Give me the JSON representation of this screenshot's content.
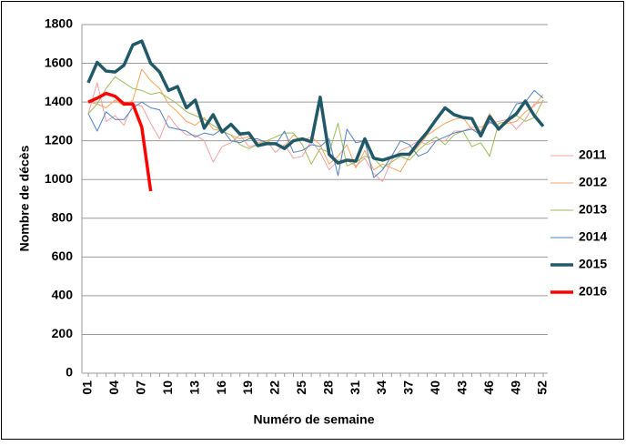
{
  "chart_data": {
    "type": "line",
    "y_label": "Nombre de décès",
    "x_label": "Numéro de semaine",
    "categories": [
      "01",
      null,
      null,
      "04",
      null,
      null,
      "07",
      null,
      null,
      "10",
      null,
      null,
      "13",
      null,
      null,
      "16",
      null,
      null,
      "19",
      null,
      null,
      "22",
      null,
      null,
      "25",
      null,
      null,
      "28",
      null,
      null,
      "31",
      null,
      null,
      "34",
      null,
      null,
      "37",
      null,
      null,
      "40",
      null,
      null,
      "43",
      null,
      null,
      "46",
      null,
      null,
      "49",
      null,
      null,
      "52"
    ],
    "series": [
      {
        "name": "2011",
        "color": "#f4a0a0",
        "line_width": 1,
        "values": [
          1340,
          1500,
          1300,
          1330,
          1280,
          1390,
          1380,
          1290,
          1210,
          1330,
          1270,
          1230,
          1230,
          1200,
          1090,
          1170,
          1190,
          1230,
          1170,
          1180,
          1200,
          1140,
          1180,
          1110,
          1120,
          1200,
          1140,
          1050,
          1100,
          1100,
          1070,
          1110,
          1030,
          990,
          1100,
          1150,
          1170,
          1200,
          1180,
          1200,
          1200,
          1250,
          1250,
          1270,
          1270,
          1290,
          1300,
          1310,
          1260,
          1310,
          1390,
          1400
        ]
      },
      {
        "name": "2012",
        "color": "#f7a35c",
        "line_width": 1,
        "values": [
          1400,
          1390,
          1370,
          1410,
          1380,
          1410,
          1570,
          1510,
          1470,
          1390,
          1350,
          1300,
          1280,
          1320,
          1260,
          1250,
          1230,
          1210,
          1220,
          1190,
          1200,
          1180,
          1170,
          1230,
          1200,
          1220,
          1180,
          1080,
          1120,
          1180,
          1060,
          1150,
          1050,
          1080,
          1060,
          1040,
          1120,
          1170,
          1230,
          1260,
          1290,
          1310,
          1320,
          1260,
          1250,
          1340,
          1270,
          1290,
          1300,
          1350,
          1380,
          1440
        ]
      },
      {
        "name": "2013",
        "color": "#9bbb59",
        "line_width": 1,
        "values": [
          1340,
          1390,
          1470,
          1530,
          1500,
          1470,
          1460,
          1440,
          1450,
          1420,
          1390,
          1350,
          1330,
          1310,
          1280,
          1250,
          1230,
          1180,
          1160,
          1180,
          1200,
          1220,
          1240,
          1240,
          1180,
          1080,
          1160,
          1140,
          1290,
          1070,
          1090,
          1120,
          1110,
          1060,
          1090,
          1120,
          1100,
          1150,
          1190,
          1220,
          1180,
          1230,
          1250,
          1170,
          1190,
          1120,
          1290,
          1300,
          1330,
          1300,
          1320,
          1410
        ]
      },
      {
        "name": "2014",
        "color": "#4f81bd",
        "line_width": 1,
        "values": [
          1340,
          1250,
          1350,
          1310,
          1310,
          1370,
          1400,
          1370,
          1360,
          1270,
          1260,
          1250,
          1220,
          1240,
          1230,
          1260,
          1200,
          1190,
          1210,
          1210,
          1190,
          1180,
          1250,
          1140,
          1150,
          1180,
          1170,
          1210,
          1020,
          1260,
          1190,
          1200,
          1010,
          1050,
          1120,
          1200,
          1180,
          1120,
          1140,
          1200,
          1220,
          1240,
          1250,
          1260,
          1230,
          1300,
          1260,
          1310,
          1390,
          1400,
          1460,
          1420
        ]
      },
      {
        "name": "2015",
        "color": "#215968",
        "line_width": 3.5,
        "values": [
          1500,
          1605,
          1560,
          1555,
          1590,
          1695,
          1715,
          1600,
          1555,
          1460,
          1480,
          1370,
          1410,
          1265,
          1335,
          1245,
          1285,
          1235,
          1240,
          1175,
          1185,
          1185,
          1160,
          1200,
          1210,
          1195,
          1425,
          1130,
          1085,
          1100,
          1095,
          1210,
          1110,
          1100,
          1115,
          1130,
          1130,
          1190,
          1245,
          1310,
          1370,
          1335,
          1320,
          1315,
          1225,
          1325,
          1260,
          1305,
          1340,
          1405,
          1330,
          1275
        ]
      },
      {
        "name": "2016",
        "color": "#ff0000",
        "line_width": 3.5,
        "values": [
          1400,
          1420,
          1445,
          1430,
          1390,
          1390,
          1270,
          940,
          null,
          null,
          null,
          null,
          null,
          null,
          null,
          null,
          null,
          null,
          null,
          null,
          null,
          null,
          null,
          null,
          null,
          null,
          null,
          null,
          null,
          null,
          null,
          null,
          null,
          null,
          null,
          null,
          null,
          null,
          null,
          null,
          null,
          null,
          null,
          null,
          null,
          null,
          null,
          null,
          null,
          null,
          null,
          null
        ]
      }
    ],
    "ylim": [
      0,
      1800
    ],
    "yticks": [
      0,
      200,
      400,
      600,
      800,
      1000,
      1200,
      1400,
      1600,
      1800
    ],
    "grid": true
  }
}
